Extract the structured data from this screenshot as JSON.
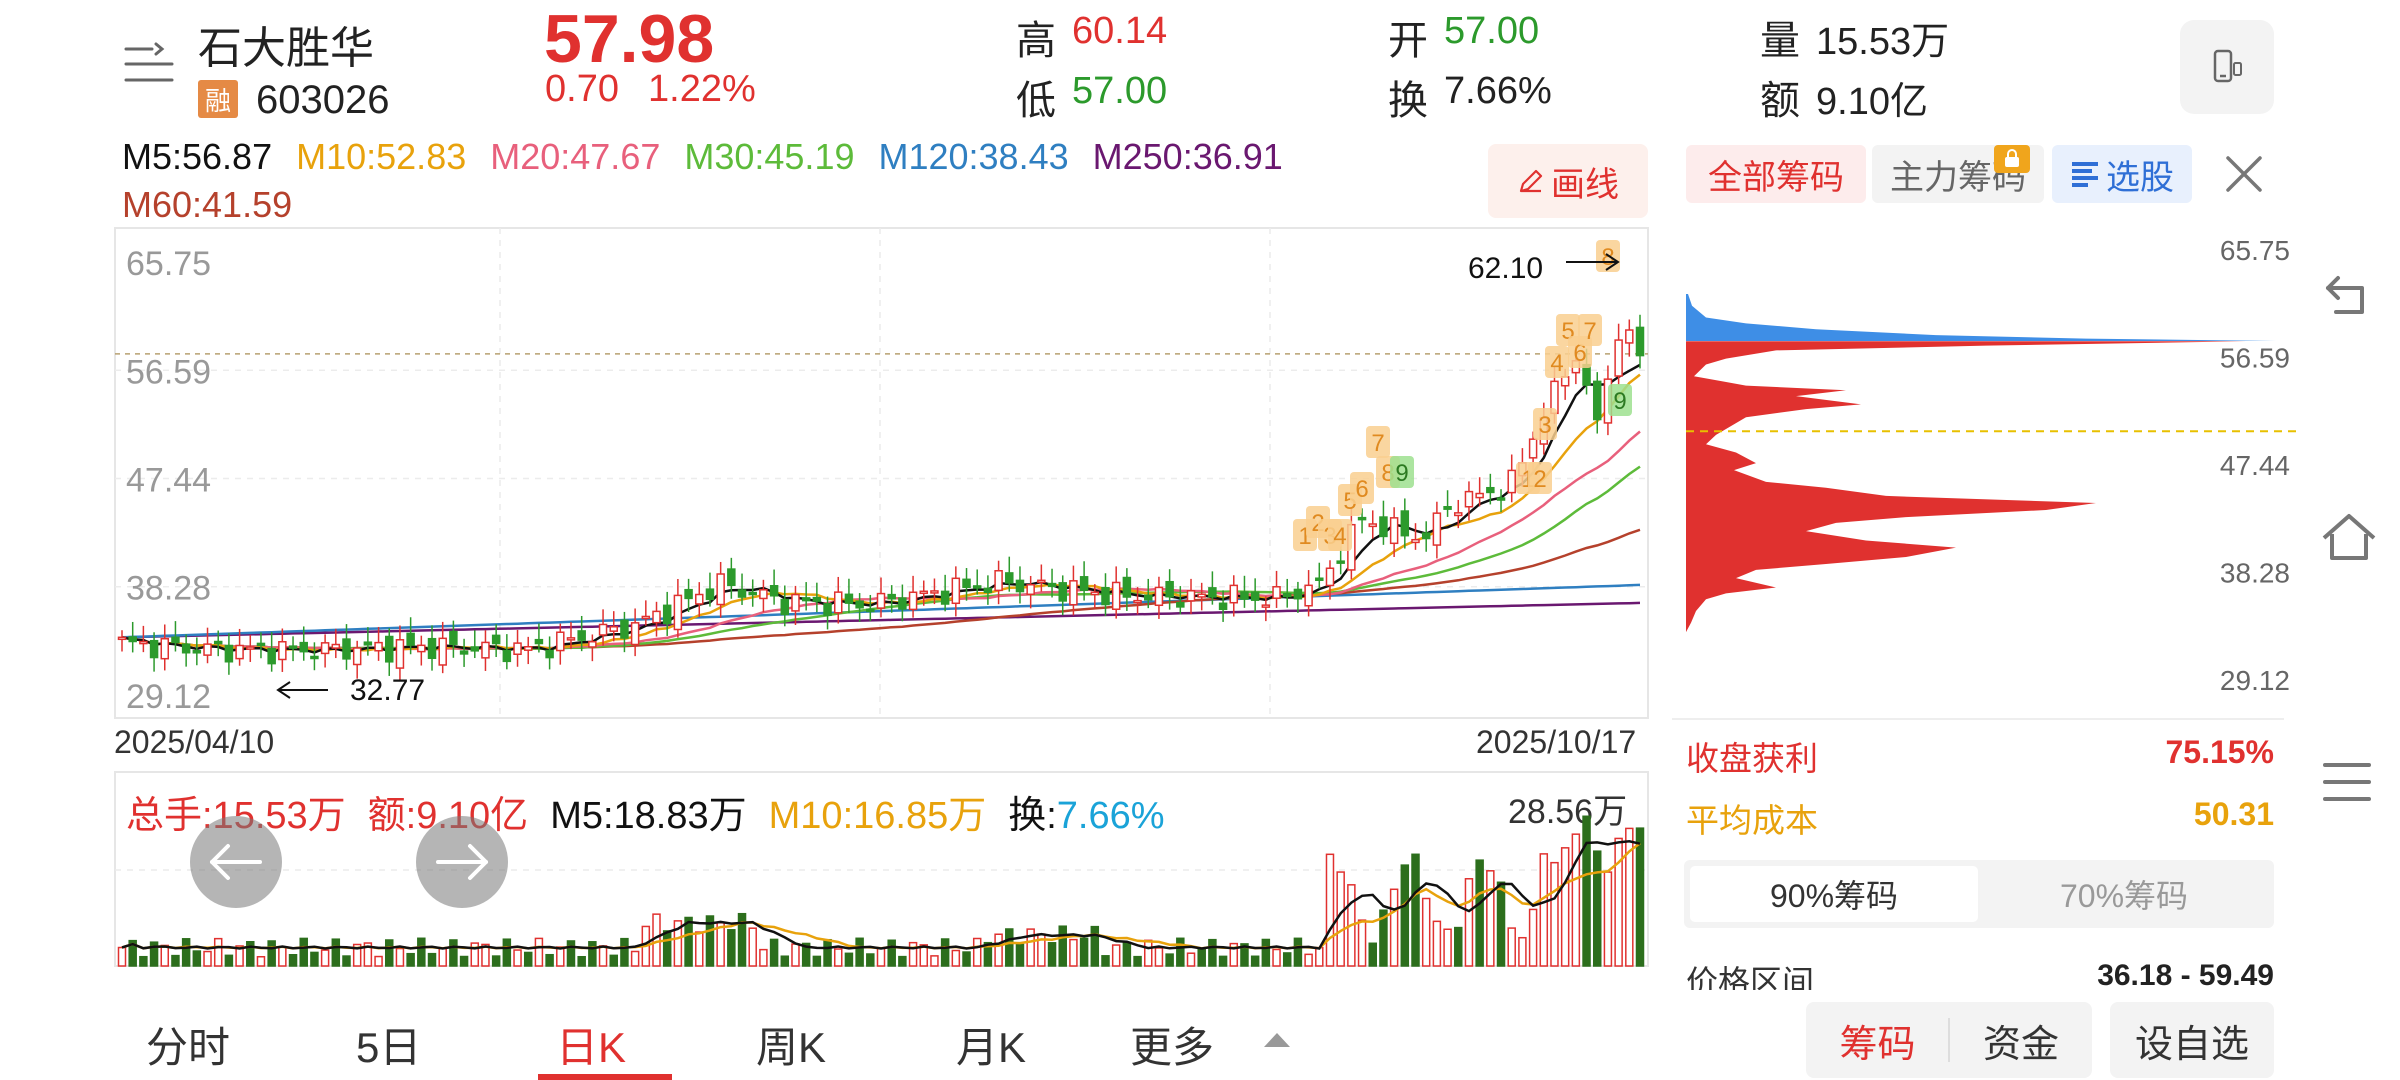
{
  "header": {
    "name": "石大胜华",
    "badge": "融",
    "code": "603026",
    "price": "57.98",
    "change": "0.70",
    "change_pct": "1.22%",
    "high_label": "高",
    "high": "60.14",
    "low_label": "低",
    "low": "57.00",
    "open_label": "开",
    "open": "57.00",
    "turn_label": "换",
    "turn": "7.66%",
    "vol_label": "量",
    "vol": "15.53万",
    "amt_label": "额",
    "amt": "9.10亿"
  },
  "ma": [
    {
      "t": "M5:56.87",
      "c": "#111111"
    },
    {
      "t": "M10:52.83",
      "c": "#e8a20c"
    },
    {
      "t": "M20:47.67",
      "c": "#e8607c"
    },
    {
      "t": "M30:45.19",
      "c": "#5dbb3a"
    },
    {
      "t": "M120:38.43",
      "c": "#2f7fc1"
    },
    {
      "t": "M250:36.91",
      "c": "#6a1870"
    },
    {
      "t": "M60:41.59",
      "c": "#b5412c"
    }
  ],
  "draw_btn": "画线",
  "kline": {
    "y_labels": [
      "65.75",
      "56.59",
      "47.44",
      "38.28",
      "29.12"
    ],
    "y_values": [
      65.75,
      56.59,
      47.44,
      38.28,
      29.12
    ],
    "date_start": "2025/04/10",
    "date_end": "2025/10/17",
    "max_mark": "62.10",
    "min_mark": "32.77",
    "last_close": 57.98
  },
  "chip_tabs": {
    "all": "全部筹码",
    "main": "主力筹码",
    "select": "选股"
  },
  "chip_axis": [
    "65.75",
    "56.59",
    "47.44",
    "38.28",
    "29.12"
  ],
  "chip_stats": {
    "profit_label": "收盘获利",
    "profit": "75.15%",
    "cost_label": "平均成本",
    "cost": "50.31",
    "tab90": "90%筹码",
    "tab70": "70%筹码",
    "range_label": "价格区间",
    "range": "36.18 - 59.49"
  },
  "volume": {
    "total": "总手:15.53万",
    "amount": "额:9.10亿",
    "m5": "M5:18.83万",
    "m10": "M10:16.85万",
    "turn_label": "换:",
    "turn": "7.66%",
    "max": "28.56万"
  },
  "bottom_tabs": [
    "分时",
    "5日",
    "日K",
    "周K",
    "月K",
    "更多"
  ],
  "active_tab": "日K",
  "bottom_buttons": {
    "chip": "筹码",
    "fund": "资金",
    "watch": "设自选"
  },
  "colors": {
    "up": "#e0312f",
    "down": "#2c9a2c",
    "accent": "#e0312f",
    "blue": "#2f6fd6",
    "gold": "#e8a20c"
  }
}
